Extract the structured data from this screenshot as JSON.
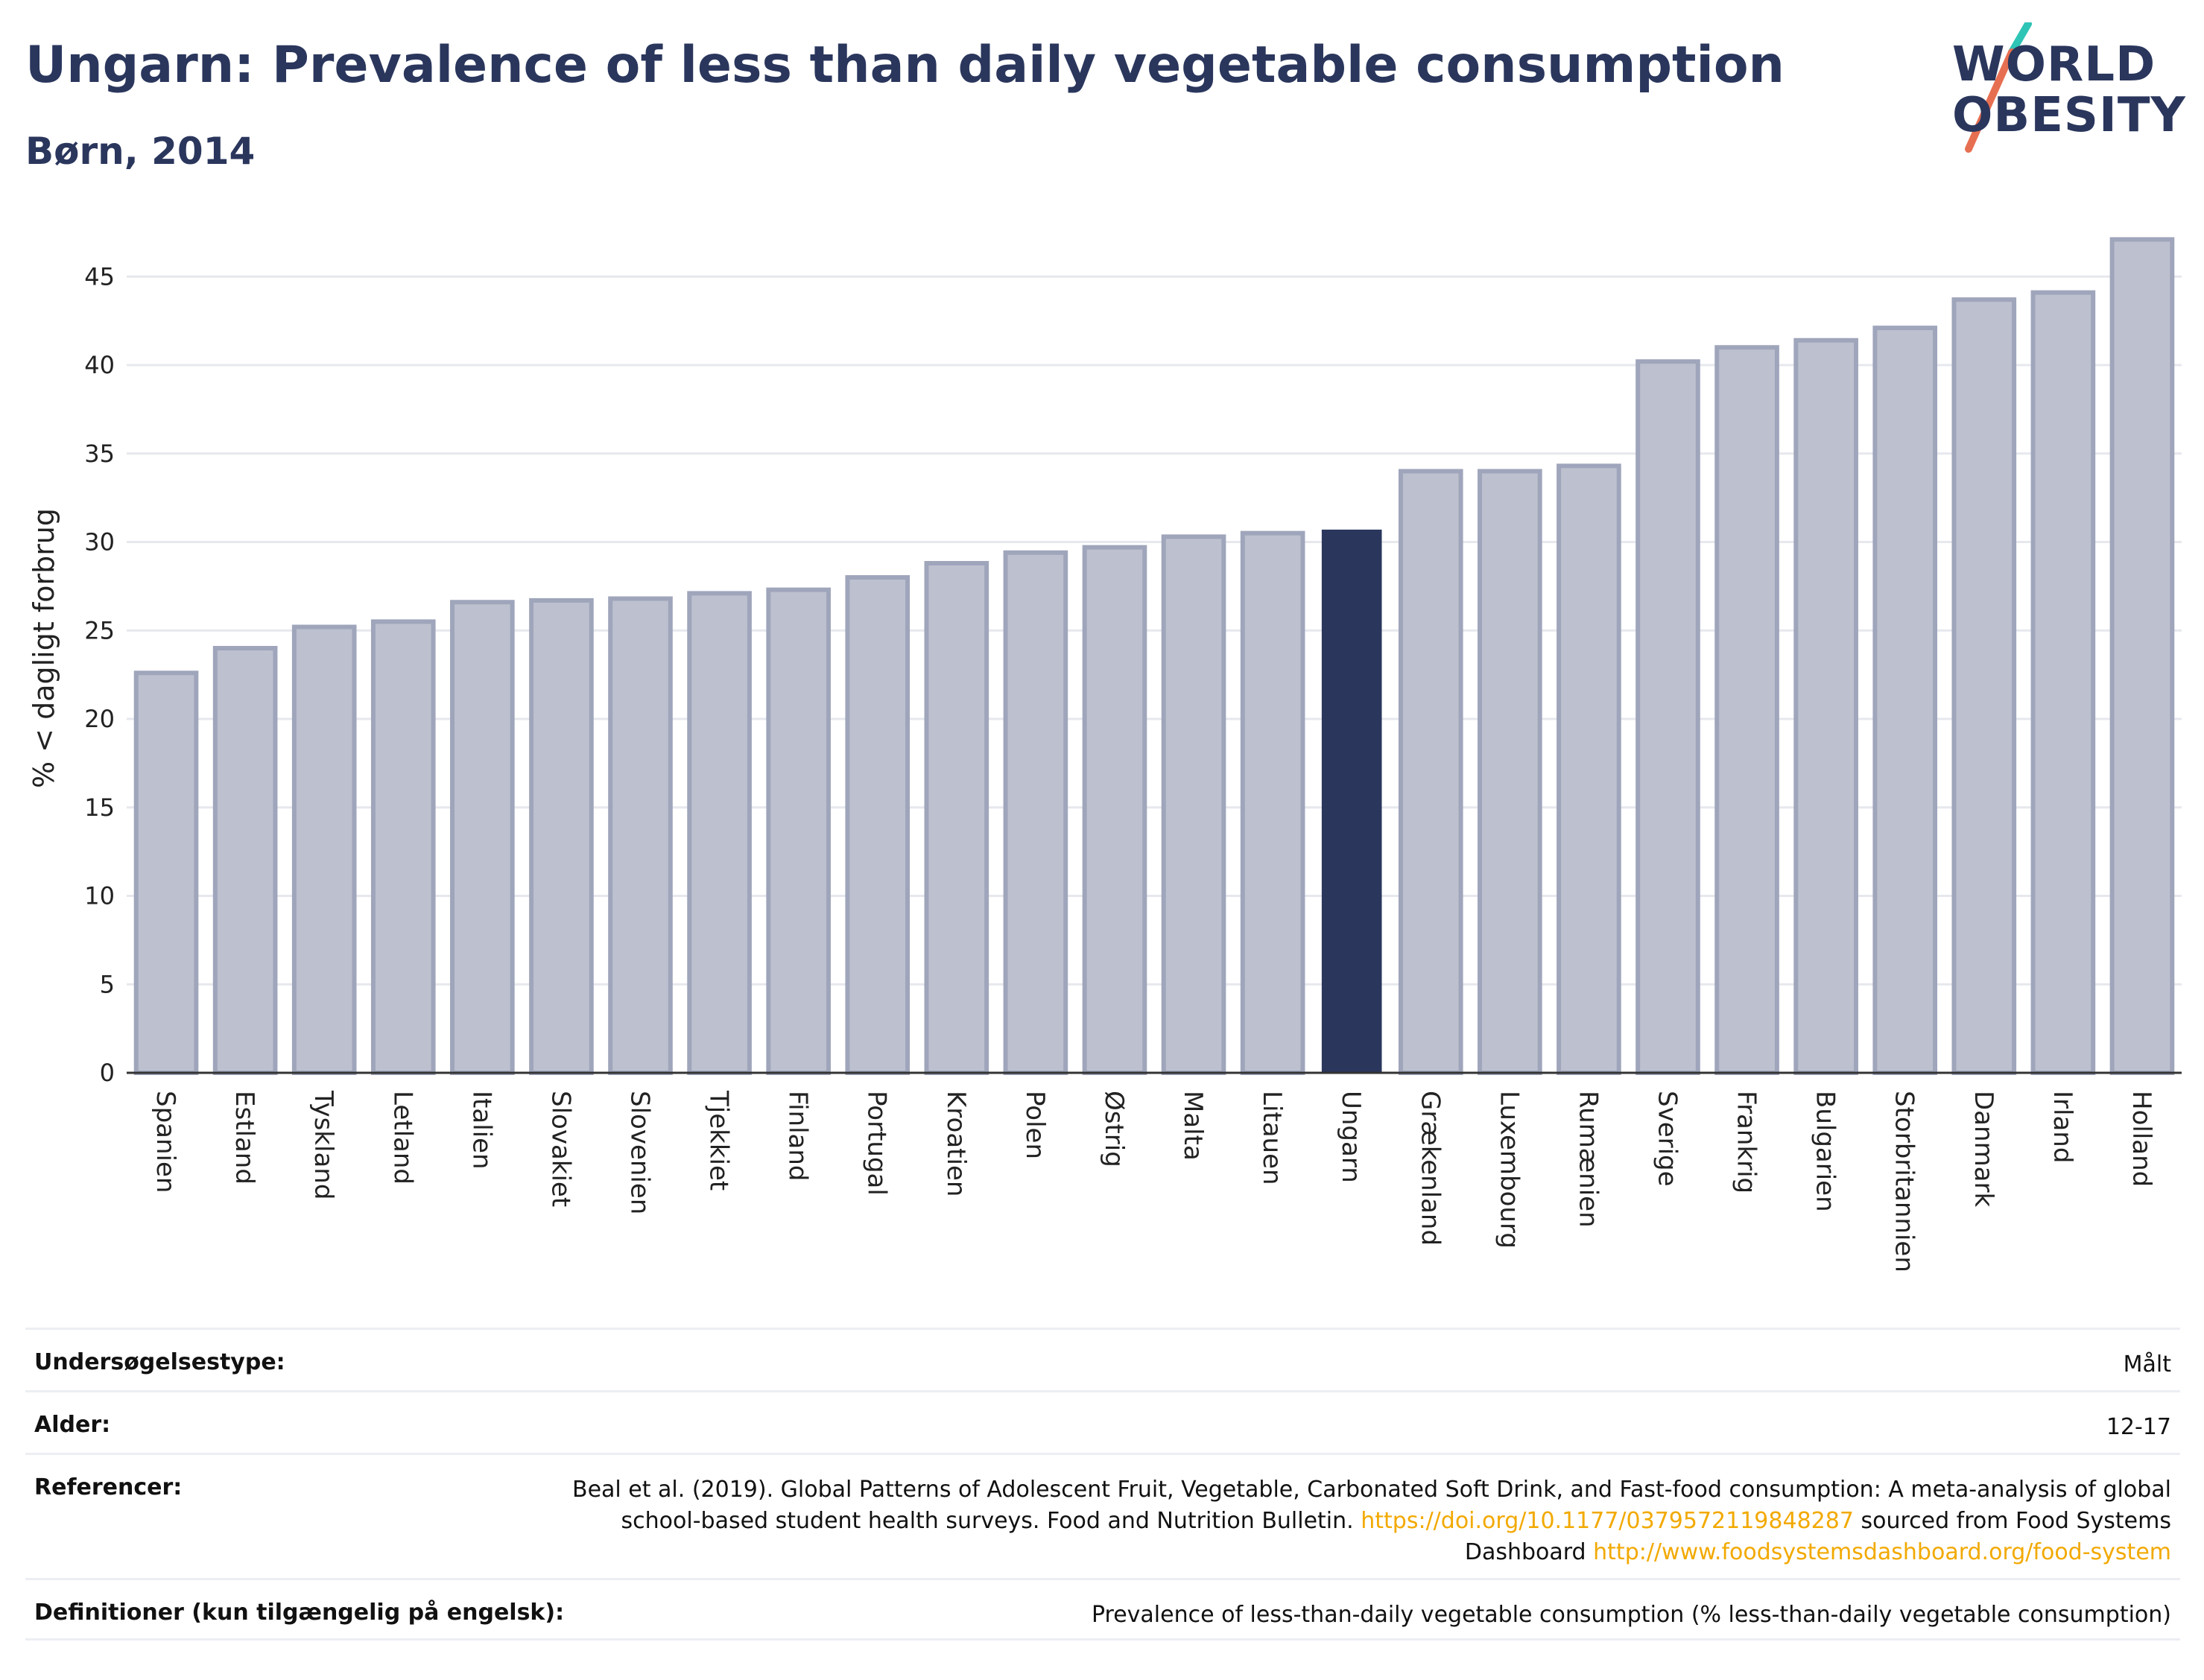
{
  "header": {
    "title": "Ungarn: Prevalence of less than daily vegetable consumption",
    "subtitle": "Børn, 2014"
  },
  "logo": {
    "line1": "WORLD",
    "line2": "OBESITY",
    "slash_colors": [
      "#2ec4b6",
      "#e76f51"
    ],
    "text_color": "#2a365c"
  },
  "colors": {
    "bar_default": "#bdc1cf",
    "bar_border": "#9fa5bb",
    "bar_highlight": "#2a365c",
    "grid": "#e6e8ee",
    "link": "#f2a900"
  },
  "chart_data": {
    "type": "bar",
    "title": "",
    "xlabel": "",
    "ylabel": "% < dagligt forbrug",
    "ylim": [
      0,
      48
    ],
    "yticks": [
      0,
      5,
      10,
      15,
      20,
      25,
      30,
      35,
      40,
      45
    ],
    "highlight": "Ungarn",
    "categories": [
      "Spanien",
      "Estland",
      "Tyskland",
      "Letland",
      "Italien",
      "Slovakiet",
      "Slovenien",
      "Tjekkiet",
      "Finland",
      "Portugal",
      "Kroatien",
      "Polen",
      "Østrig",
      "Malta",
      "Litauen",
      "Ungarn",
      "Grækenland",
      "Luxembourg",
      "Rumænien",
      "Sverige",
      "Frankrig",
      "Bulgarien",
      "Storbritannien",
      "Danmark",
      "Irland",
      "Holland"
    ],
    "values": [
      22.6,
      24.0,
      25.2,
      25.5,
      26.6,
      26.7,
      26.8,
      27.1,
      27.3,
      28.0,
      28.8,
      29.4,
      29.7,
      30.3,
      30.5,
      30.7,
      34.0,
      34.0,
      34.3,
      40.2,
      41.0,
      41.4,
      42.1,
      43.7,
      44.1,
      47.1
    ]
  },
  "meta": {
    "rows": [
      {
        "label": "Undersøgelsestype:",
        "value": "Målt"
      },
      {
        "label": "Alder:",
        "value": "12-17"
      },
      {
        "label": "Referencer:",
        "value": "Beal et al. (2019). Global Patterns of Adolescent Fruit, Vegetable, Carbonated Soft Drink, and Fast-food consumption: A meta-analysis of global school-based student health surveys. Food and Nutrition Bulletin.",
        "link1": "https://doi.org/10.1177/0379572119848287",
        "mid": "sourced from Food Systems Dashboard",
        "link2": "http://www.foodsystemsdashboard.org/food-system"
      },
      {
        "label": "Definitioner (kun tilgængelig på engelsk):",
        "value": "Prevalence of less-than-daily vegetable consumption (% less-than-daily vegetable consumption)"
      }
    ]
  }
}
